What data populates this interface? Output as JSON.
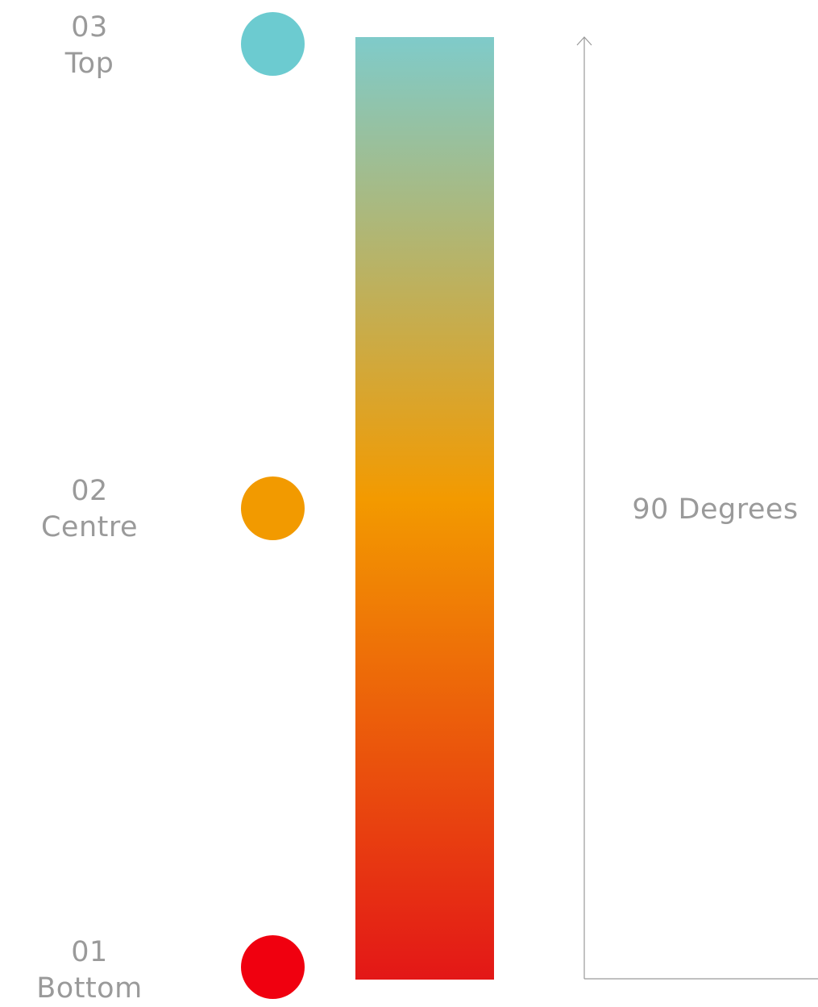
{
  "stops": [
    {
      "number": "03",
      "name": "Top",
      "color": "#6ccbd0",
      "position": 0
    },
    {
      "number": "02",
      "name": "Centre",
      "color": "#f29a00",
      "position": 0.49
    },
    {
      "number": "01",
      "name": "Bottom",
      "color": "#f0000f",
      "position": 1
    }
  ],
  "gradient": {
    "top_color": "#7fcbca",
    "mid_color": "#f39a00",
    "bottom_color": "#e31717"
  },
  "axis": {
    "label": "90 Degrees",
    "line_color": "#9a9a9a"
  }
}
